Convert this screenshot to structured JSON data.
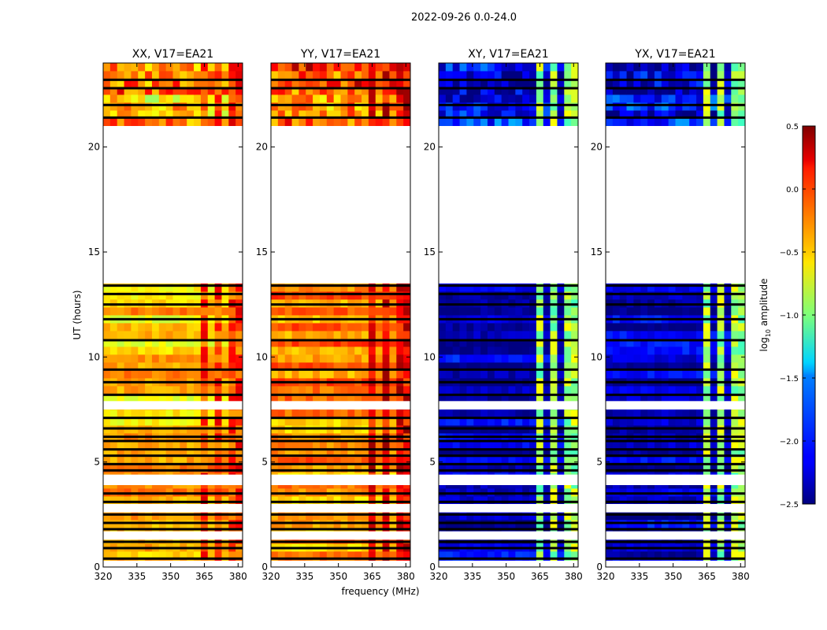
{
  "figure": {
    "suptitle": "2022-09-26 0.0-24.0",
    "xlabel": "frequency (MHz)",
    "ylabel": "UT (hours)"
  },
  "colorbar": {
    "label_prefix": "log",
    "label_sub": "10",
    "label_suffix": " amplitude",
    "range": [
      -2.5,
      0.5
    ],
    "ticks": [
      0.5,
      0.0,
      -0.5,
      -1.0,
      -1.5,
      -2.0,
      -2.5
    ],
    "tick_labels": [
      "0.5",
      "0.0",
      "−0.5",
      "−1.0",
      "−1.5",
      "−2.0",
      "−2.5"
    ],
    "colormap": "jet"
  },
  "chart_data": {
    "type": "heatmap",
    "x_range": [
      320,
      382
    ],
    "x_ticks": [
      320,
      335,
      350,
      365,
      380
    ],
    "x_tick_labels": [
      "320",
      "335",
      "350",
      "365",
      "380"
    ],
    "y_range": [
      0,
      24
    ],
    "y_ticks": [
      0,
      5,
      10,
      15,
      20
    ],
    "y_tick_labels": [
      "0",
      "5",
      "10",
      "15",
      "20"
    ],
    "white_gaps_hours": [
      [
        0.0,
        0.3
      ],
      [
        1.3,
        1.7
      ],
      [
        2.6,
        3.0
      ],
      [
        3.9,
        4.4
      ],
      [
        7.5,
        7.9
      ],
      [
        13.5,
        21.0
      ]
    ],
    "black_rows_hours": [
      0.4,
      0.9,
      1.2,
      1.8,
      2.1,
      2.5,
      3.1,
      3.5,
      4.6,
      4.9,
      5.3,
      5.6,
      6.0,
      6.2,
      6.6,
      7.1,
      7.7,
      8.2,
      8.8,
      9.4,
      10.8,
      11.8,
      12.5,
      13.0,
      13.4,
      21.4,
      22.0,
      22.8,
      23.2
    ],
    "rfi_bands_mhz": [
      [
        363,
        366
      ],
      [
        368.5,
        371.5
      ],
      [
        375,
        378
      ],
      [
        379,
        381
      ]
    ],
    "panels": [
      {
        "title": "XX, V17=EA21",
        "base_level": -0.45,
        "rfi_level": -0.05
      },
      {
        "title": "YY, V17=EA21",
        "base_level": -0.3,
        "rfi_level": 0.15
      },
      {
        "title": "XY, V17=EA21",
        "base_level": -2.3,
        "rfi_level": -0.9
      },
      {
        "title": "YX, V17=EA21",
        "base_level": -2.3,
        "rfi_level": -0.9
      }
    ]
  }
}
